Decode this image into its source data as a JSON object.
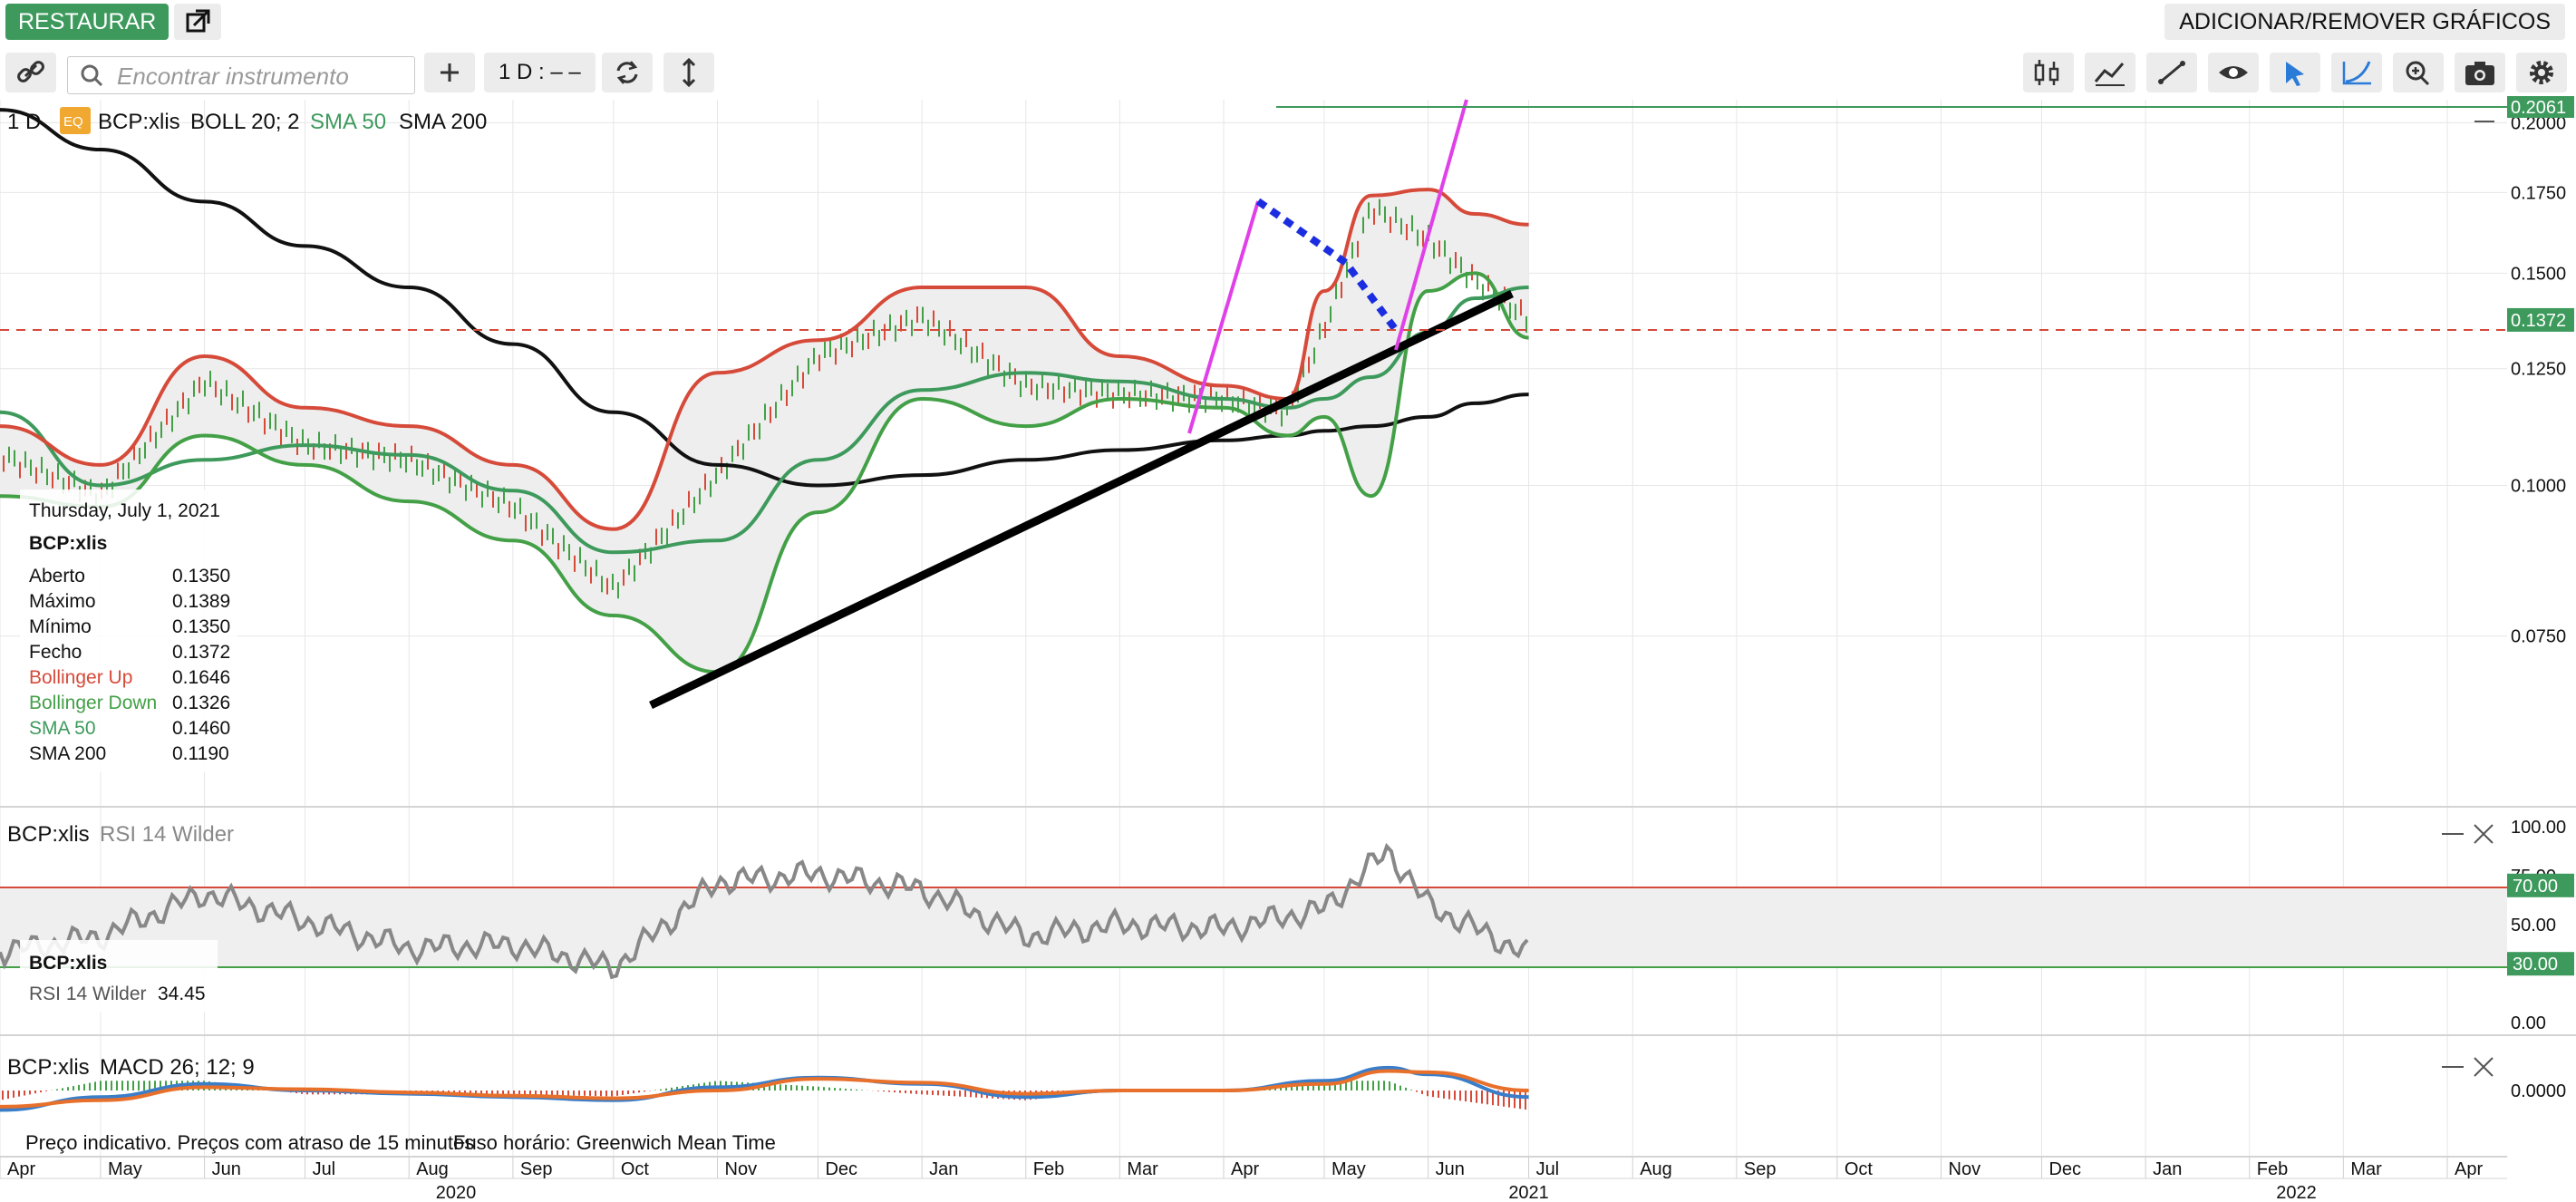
{
  "topbar": {
    "restore_label": "RESTAURAR",
    "add_remove_label": "ADICIONAR/REMOVER GRÁFICOS"
  },
  "toolbar": {
    "search_placeholder": "Encontrar instrumento",
    "timeframe_label": "1 D : – –",
    "icons": [
      "link-icon",
      "search-icon",
      "plus-icon",
      "refresh-icon",
      "vertical-arrows-icon",
      "candlestick-icon",
      "indicators-icon",
      "draw-line-icon",
      "eye-icon",
      "cursor-icon",
      "curve-icon",
      "zoom-icon",
      "camera-icon",
      "gear-icon"
    ]
  },
  "colors": {
    "accent_green": "#3d9a5c",
    "boll_up": "#d64a3a",
    "boll_down": "#43a047",
    "sma50": "#3e9a5c",
    "sma200": "#111111",
    "rsi_line": "#888888",
    "pink": "#e040e8",
    "blue_dash": "#1b2de0"
  },
  "legend": {
    "interval": "1 D",
    "badge": "EQ",
    "symbol": "BCP:xlis",
    "boll": "BOLL 20; 2",
    "sma50": "SMA 50",
    "sma200": "SMA 200"
  },
  "tooltip": {
    "date": "Thursday, July 1, 2021",
    "symbol": "BCP:xlis",
    "rows": [
      {
        "label": "Aberto",
        "value": "0.1350"
      },
      {
        "label": "Máximo",
        "value": "0.1389"
      },
      {
        "label": "Mínimo",
        "value": "0.1350"
      },
      {
        "label": "Fecho",
        "value": "0.1372"
      },
      {
        "label": "Bollinger Up",
        "value": "0.1646"
      },
      {
        "label": "Bollinger Down",
        "value": "0.1326"
      },
      {
        "label": "SMA 50",
        "value": "0.1460"
      },
      {
        "label": "SMA 200",
        "value": "0.1190"
      }
    ]
  },
  "rsi_panel": {
    "symbol": "BCP:xlis",
    "label": "RSI 14 Wilder",
    "tip_symbol": "BCP:xlis",
    "tip_label": "RSI 14 Wilder",
    "tip_value": "34.45"
  },
  "macd_panel": {
    "symbol": "BCP:xlis",
    "label": "MACD 26; 12; 9"
  },
  "footer_note": "Preço indicativo. Preços com atraso de 15 minutos",
  "timezone_note": "Fuso horário: Greenwich Mean Time",
  "chart_data": [
    {
      "type": "line",
      "title": "BCP:xlis",
      "scale": "log",
      "ylim": [
        0.058,
        0.2061
      ],
      "y_ticks": [
        "0.2000",
        "0.1750",
        "0.1500",
        "0.1250",
        "0.1000",
        "0.0750"
      ],
      "y_tick_values": [
        0.2,
        0.175,
        0.15,
        0.125,
        0.1,
        0.075
      ],
      "price_labels": {
        "top": "0.2061",
        "last": "0.1372"
      },
      "x_months": [
        "Apr",
        "May",
        "Jun",
        "Jul",
        "Aug",
        "Sep",
        "Oct",
        "Nov",
        "Dec",
        "Jan",
        "Feb",
        "Mar",
        "Apr",
        "May",
        "Jun",
        "Jul",
        "Aug",
        "Sep",
        "Oct",
        "Nov",
        "Dec",
        "Jan",
        "Feb",
        "Mar",
        "Apr"
      ],
      "x_years": [
        "2020",
        "2021",
        "2022"
      ],
      "dates": [
        "2020-04-01",
        "2020-05-01",
        "2020-06-01",
        "2020-07-01",
        "2020-08-01",
        "2020-09-01",
        "2020-10-01",
        "2020-11-01",
        "2020-12-01",
        "2021-01-01",
        "2021-02-01",
        "2021-03-01",
        "2021-04-01",
        "2021-04-20",
        "2021-05-01",
        "2021-05-15",
        "2021-06-01",
        "2021-06-15",
        "2021-07-01"
      ],
      "series": [
        {
          "name": "Bollinger Up",
          "values": [
            0.112,
            0.104,
            0.128,
            0.116,
            0.112,
            0.104,
            0.092,
            0.124,
            0.132,
            0.146,
            0.146,
            0.128,
            0.121,
            0.118,
            0.145,
            0.174,
            0.176,
            0.168,
            0.1646
          ]
        },
        {
          "name": "Bollinger Down",
          "values": [
            0.098,
            0.096,
            0.11,
            0.104,
            0.097,
            0.09,
            0.078,
            0.07,
            0.095,
            0.118,
            0.112,
            0.118,
            0.116,
            0.11,
            0.114,
            0.098,
            0.145,
            0.15,
            0.1326
          ]
        },
        {
          "name": "SMA 50",
          "values": [
            0.115,
            0.1,
            0.105,
            0.108,
            0.106,
            0.099,
            0.088,
            0.09,
            0.105,
            0.12,
            0.124,
            0.122,
            0.118,
            0.116,
            0.118,
            0.123,
            0.134,
            0.143,
            0.146
          ]
        },
        {
          "name": "SMA 200",
          "values": [
            0.205,
            0.19,
            0.172,
            0.158,
            0.146,
            0.131,
            0.115,
            0.104,
            0.1,
            0.102,
            0.105,
            0.107,
            0.109,
            0.11,
            0.111,
            0.112,
            0.114,
            0.117,
            0.119
          ]
        },
        {
          "name": "Fecho",
          "values": [
            0.106,
            0.098,
            0.122,
            0.108,
            0.105,
            0.096,
            0.082,
            0.102,
            0.128,
            0.138,
            0.121,
            0.119,
            0.118,
            0.115,
            0.135,
            0.17,
            0.16,
            0.148,
            0.1372
          ]
        }
      ]
    },
    {
      "type": "line",
      "title": "RSI 14 Wilder",
      "ylim": [
        0,
        100
      ],
      "y_ticks": [
        "100.00",
        "75.00",
        "50.00",
        "0.00"
      ],
      "y_tick_values": [
        100,
        75,
        50,
        0
      ],
      "levels": {
        "upper": "70.00",
        "lower": "30.00"
      },
      "level_values": [
        70,
        30
      ],
      "dates": [
        "2020-04-01",
        "2020-05-01",
        "2020-06-01",
        "2020-07-01",
        "2020-08-01",
        "2020-09-01",
        "2020-10-01",
        "2020-11-01",
        "2020-12-01",
        "2021-01-01",
        "2021-02-01",
        "2021-03-01",
        "2021-04-01",
        "2021-05-01",
        "2021-05-20",
        "2021-06-01",
        "2021-07-01"
      ],
      "values": [
        36,
        44,
        66,
        52,
        38,
        40,
        28,
        72,
        76,
        68,
        44,
        50,
        48,
        58,
        88,
        60,
        34.45
      ]
    },
    {
      "type": "line",
      "title": "MACD 26; 12; 9",
      "y_ticks": [
        "0.0000"
      ],
      "y_tick_values": [
        0
      ],
      "ylim": [
        -0.006,
        0.006
      ],
      "dates": [
        "2020-04-01",
        "2020-05-01",
        "2020-06-01",
        "2020-07-01",
        "2020-08-01",
        "2020-09-01",
        "2020-10-01",
        "2020-11-01",
        "2020-12-01",
        "2021-01-01",
        "2021-02-01",
        "2021-03-01",
        "2021-04-01",
        "2021-05-01",
        "2021-05-20",
        "2021-06-01",
        "2021-07-01"
      ],
      "series": [
        {
          "name": "MACD",
          "values": [
            -0.003,
            -0.001,
            0.001,
            0.0,
            -0.0005,
            -0.001,
            -0.0015,
            0.0005,
            0.002,
            0.001,
            -0.001,
            0.0,
            0.0,
            0.0015,
            0.0035,
            0.0025,
            -0.001
          ]
        },
        {
          "name": "Signal",
          "values": [
            -0.0025,
            -0.0015,
            0.0005,
            0.0002,
            -0.0003,
            -0.0008,
            -0.0012,
            0.0,
            0.0018,
            0.0012,
            -0.0005,
            0.0,
            0.0,
            0.001,
            0.003,
            0.0028,
            0.0
          ]
        }
      ]
    }
  ]
}
